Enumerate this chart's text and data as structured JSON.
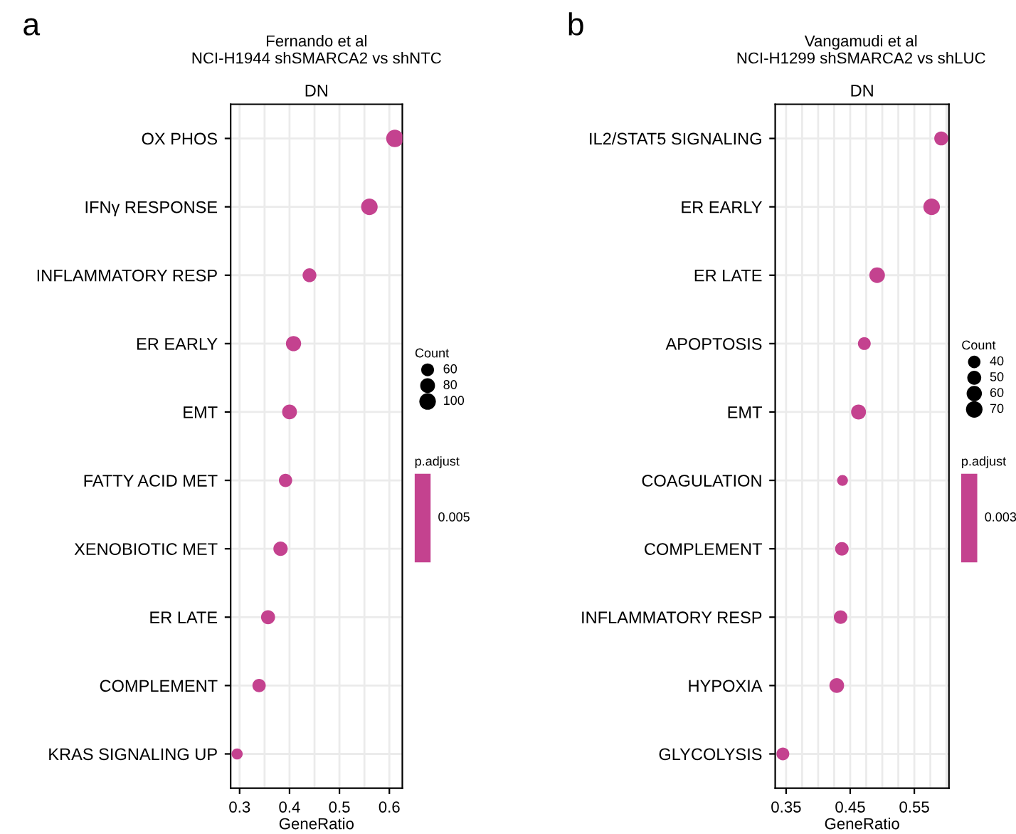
{
  "chart_data": [
    {
      "type": "bubble",
      "title": "Fernando et al\nNCI-H1944 shSMARCA2 vs shNTC",
      "subtitle": "DN",
      "xlabel": "GeneRatio",
      "legend_title": "Count",
      "clabel": "p.adjust",
      "annotations": [
        "a",
        "0.005"
      ],
      "categories": [
        "OX PHOS",
        "IFNγ RESPONSE",
        "INFLAMMATORY RESP",
        "ER EARLY",
        "EMT",
        "FATTY ACID MET",
        "XENOBIOTIC MET",
        "ER LATE",
        "COMPLEMENT",
        "KRAS SIGNALING UP"
      ],
      "series": [
        {
          "color": "#c4428f",
          "values": [
            0.611,
            0.56,
            0.44,
            0.408,
            0.4,
            0.392,
            0.382,
            0.357,
            0.339,
            0.295
          ],
          "sizes": [
            110,
            100,
            70,
            85,
            80,
            65,
            75,
            72,
            65,
            45
          ]
        }
      ],
      "orientation": "horizontal",
      "size_legend": [
        60,
        80,
        100
      ],
      "xlim": [
        0.282,
        0.626
      ],
      "xticks": [
        0.3,
        {
          "value": 0.35,
          "label": null
        },
        0.4,
        {
          "value": 0.45,
          "label": null
        },
        0.5,
        {
          "value": 0.55,
          "label": null
        },
        0.6
      ],
      "grid": true
    },
    {
      "type": "bubble",
      "title": "Vangamudi et al\nNCI-H1299 shSMARCA2 vs shLUC",
      "subtitle": "DN",
      "xlabel": "GeneRatio",
      "legend_title": "Count",
      "clabel": "p.adjust",
      "annotations": [
        "b",
        "0.003"
      ],
      "categories": [
        "IL2/STAT5 SIGNALING",
        "ER EARLY",
        "ER LATE",
        "APOPTOSIS",
        "EMT",
        "COAGULATION",
        "COMPLEMENT",
        "INFLAMMATORY RESP",
        "HYPOXIA",
        "GLYCOLYSIS"
      ],
      "series": [
        {
          "color": "#c4428f",
          "values": [
            0.592,
            0.577,
            0.492,
            0.472,
            0.463,
            0.438,
            0.437,
            0.435,
            0.429,
            0.345
          ],
          "sizes": [
            50,
            70,
            62,
            42,
            57,
            30,
            47,
            47,
            55,
            42
          ]
        }
      ],
      "orientation": "horizontal",
      "size_legend": [
        40,
        50,
        60,
        70
      ],
      "xlim": [
        0.333,
        0.604
      ],
      "xticks": [
        0.35,
        {
          "value": 0.375,
          "label": null
        },
        {
          "value": 0.4,
          "label": null
        },
        {
          "value": 0.425,
          "label": null
        },
        0.45,
        {
          "value": 0.475,
          "label": null
        },
        {
          "value": 0.5,
          "label": null
        },
        {
          "value": 0.525,
          "label": null
        },
        0.55,
        {
          "value": 0.575,
          "label": null
        },
        {
          "value": 0.6,
          "label": null
        }
      ],
      "grid": true
    }
  ]
}
